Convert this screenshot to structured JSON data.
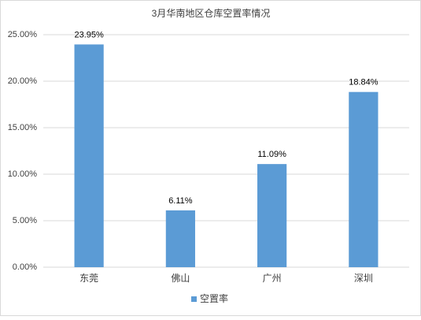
{
  "chart_data": {
    "type": "bar",
    "title": "3月华南地区仓库空置率情况",
    "categories": [
      "东莞",
      "佛山",
      "广州",
      "深圳"
    ],
    "series": [
      {
        "name": "空置率",
        "color": "#5b9bd5",
        "values": [
          23.95,
          6.11,
          11.09,
          18.84
        ],
        "value_labels": [
          "23.95%",
          "6.11%",
          "11.09%",
          "18.84%"
        ]
      }
    ],
    "ylim": [
      0,
      25
    ],
    "yticks": [
      {
        "value": 0,
        "label": "0.00%"
      },
      {
        "value": 5,
        "label": "5.00%"
      },
      {
        "value": 10,
        "label": "10.00%"
      },
      {
        "value": 15,
        "label": "15.00%"
      },
      {
        "value": 20,
        "label": "20.00%"
      },
      {
        "value": 25,
        "label": "25.00%"
      }
    ],
    "grid": true,
    "legend": "bottom"
  }
}
